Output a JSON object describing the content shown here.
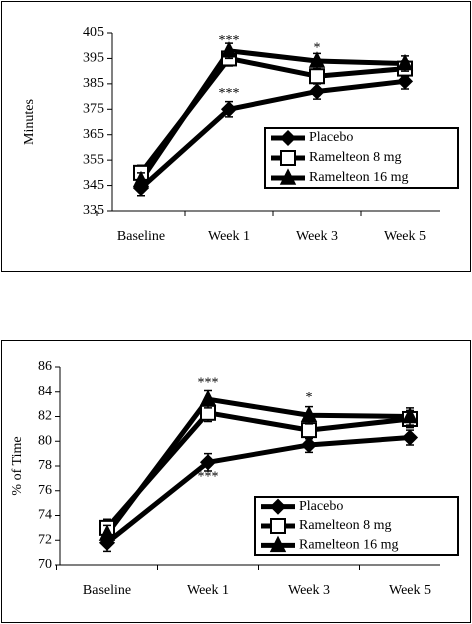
{
  "chart_data": [
    {
      "type": "line",
      "y_label": "Minutes",
      "categories": [
        "Baseline",
        "Week 1",
        "Week 3",
        "Week 5"
      ],
      "ylim": [
        335,
        405
      ],
      "yticks": [
        335,
        345,
        355,
        365,
        375,
        385,
        395,
        405
      ],
      "legend": "lower right",
      "series": [
        {
          "name": "Placebo",
          "color": "#000000",
          "marker": "diamond",
          "marker_fill": "#000000",
          "values": [
            344,
            375,
            382,
            386
          ],
          "errors": [
            3,
            3,
            3,
            3
          ]
        },
        {
          "name": "Ramelteon 8 mg",
          "color": "#000000",
          "marker": "square",
          "marker_fill": "#ffffff",
          "values": [
            350,
            395,
            388,
            391
          ],
          "errors": [
            3,
            3,
            3,
            3
          ]
        },
        {
          "name": "Ramelteon 16 mg",
          "color": "#000000",
          "marker": "triangle",
          "marker_fill": "#000000",
          "values": [
            347,
            398,
            394,
            393
          ],
          "errors": [
            3,
            3,
            3,
            3
          ]
        }
      ],
      "annotations": [
        {
          "text": "***",
          "x": "Week 1",
          "y": 402
        },
        {
          "text": "***",
          "x": "Week 1",
          "y": 381
        },
        {
          "text": "*",
          "x": "Week 3",
          "y": 399
        }
      ]
    },
    {
      "type": "line",
      "y_label": "% of Time",
      "categories": [
        "Baseline",
        "Week 1",
        "Week 3",
        "Week 5"
      ],
      "ylim": [
        70,
        86
      ],
      "yticks": [
        70,
        72,
        74,
        76,
        78,
        80,
        82,
        84,
        86
      ],
      "legend": "lower right",
      "series": [
        {
          "name": "Placebo",
          "color": "#000000",
          "marker": "diamond",
          "marker_fill": "#000000",
          "values": [
            71.8,
            78.3,
            79.7,
            80.3
          ],
          "errors": [
            0.7,
            0.7,
            0.6,
            0.6
          ]
        },
        {
          "name": "Ramelteon 8 mg",
          "color": "#000000",
          "marker": "square",
          "marker_fill": "#ffffff",
          "values": [
            73.0,
            82.3,
            80.9,
            81.8
          ],
          "errors": [
            0.7,
            0.7,
            0.7,
            0.7
          ]
        },
        {
          "name": "Ramelteon  16 mg",
          "color": "#000000",
          "marker": "triangle",
          "marker_fill": "#000000",
          "values": [
            72.5,
            83.4,
            82.1,
            82.0
          ],
          "errors": [
            0.7,
            0.7,
            0.7,
            0.7
          ]
        }
      ],
      "annotations": [
        {
          "text": "***",
          "x": "Week 1",
          "y": 84.7
        },
        {
          "text": "***",
          "x": "Week 1",
          "y": 77.1
        },
        {
          "text": "*",
          "x": "Week 3",
          "y": 83.5
        }
      ]
    }
  ]
}
